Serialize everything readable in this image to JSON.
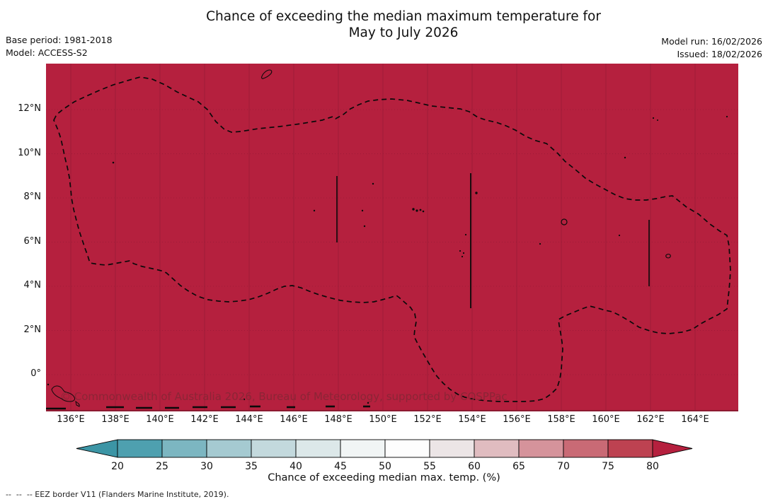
{
  "title": {
    "line1": "Chance of exceeding the median maximum temperature for",
    "line2": "May to July 2026"
  },
  "meta_left": {
    "base_period": "Base period: 1981-2018",
    "model": "Model: ACCESS-S2"
  },
  "meta_right": {
    "model_run": "Model run: 16/02/2026",
    "issued": "Issued: 18/02/2026"
  },
  "map": {
    "x_ticks": [
      "136°E",
      "138°E",
      "140°E",
      "142°E",
      "144°E",
      "146°E",
      "148°E",
      "150°E",
      "152°E",
      "154°E",
      "156°E",
      "158°E",
      "160°E",
      "162°E",
      "164°E"
    ],
    "y_ticks": [
      "12°N",
      "10°N",
      "8°N",
      "6°N",
      "4°N",
      "2°N",
      "0°"
    ],
    "watermark": "© Commonwealth of Australia 2026, Bureau of Meteorology, supported by COSPPac",
    "fill_color": "#b5203e",
    "grid_color": "#9e1b38"
  },
  "colorbar": {
    "label": "Chance of exceeding median max. temp. (%)",
    "ticks": [
      20,
      25,
      30,
      35,
      40,
      45,
      50,
      55,
      60,
      65,
      70,
      75,
      80
    ],
    "segment_colors": [
      "#4ea0af",
      "#7cb6c1",
      "#a5cad1",
      "#c3d9dd",
      "#dce8e9",
      "#f1f5f5",
      "#fdfdfd",
      "#ece5e6",
      "#e0bcc0",
      "#d5939b",
      "#c96a75",
      "#bd4251"
    ],
    "left_arrow_color": "#3c95a5",
    "right_arrow_color": "#b5203e"
  },
  "footnote": "--  --  -- EEZ border V11 (Flanders Marine Institute, 2019).",
  "chart_data": {
    "type": "heatmap",
    "title": "Chance of exceeding the median maximum temperature for May to July 2026",
    "region": "Western Pacific / Micronesia EEZ (ACCESS-S2 seasonal outlook)",
    "lon_range_deg_E": [
      135,
      166
    ],
    "lat_range_deg_N": [
      -1.6,
      14.1
    ],
    "field": "Chance of exceeding median max. temp. (%)",
    "field_values": "entire mapped region shaded in the >80% class (dark crimson)",
    "colorbar_ticks": [
      20,
      25,
      30,
      35,
      40,
      45,
      50,
      55,
      60,
      65,
      70,
      75,
      80
    ],
    "colorbar_label": "Chance of exceeding median max. temp. (%)",
    "annotations": [
      "dashed EEZ border V11 polygon",
      "solid internal EEZ division lines at 148°E (6–9°N), 154°E (3–9°N), 162°E (4–7°N)"
    ]
  }
}
